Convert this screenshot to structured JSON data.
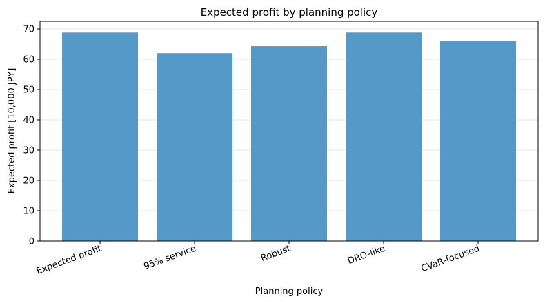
{
  "chart_data": {
    "type": "bar",
    "title": "Expected profit by planning policy",
    "xlabel": "Planning policy",
    "ylabel": "Expected profit [10,000 JPY]",
    "categories": [
      "Expected profit",
      "95% service",
      "Robust",
      "DRO-like",
      "CVaR-focused"
    ],
    "values": [
      68.8,
      62.0,
      64.3,
      68.8,
      65.9
    ],
    "ylim": [
      0,
      72.5
    ],
    "yticks": [
      0,
      10,
      20,
      30,
      40,
      50,
      60,
      70
    ],
    "grid": "y",
    "bar_color": "#5499c7"
  }
}
